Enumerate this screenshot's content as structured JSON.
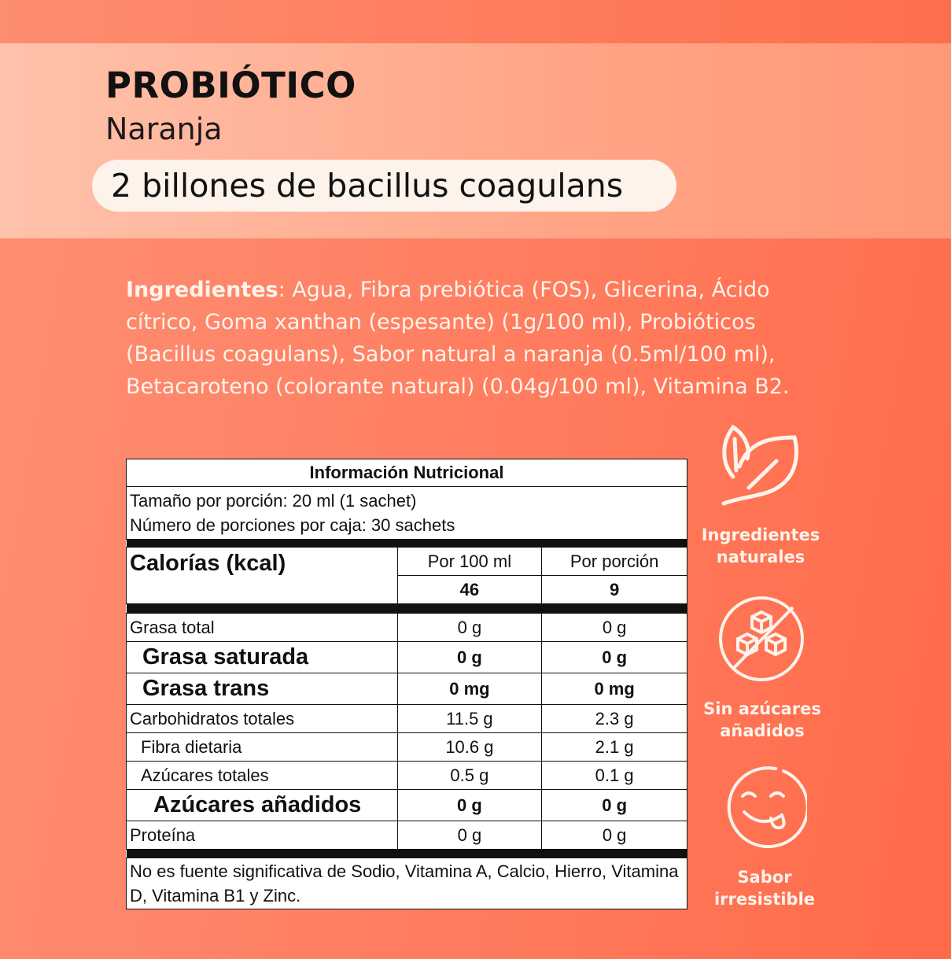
{
  "header": {
    "title": "PROBIÓTICO",
    "flavor": "Naranja",
    "highlight": "2 billones de bacillus coagulans"
  },
  "ingredients": {
    "label": "Ingredientes",
    "text": ": Agua, Fibra prebiótica (FOS), Glicerina, Ácido cítrico, Goma xanthan (espesante) (1g/100 ml), Probióticos (Bacillus coagulans), Sabor natural a naranja (0.5ml/100 ml), Betacaroteno (colorante natural) (0.04g/100 ml), Vitamina B2."
  },
  "nutrition": {
    "title": "Información Nutricional",
    "serving_size": "Tamaño por porción: 20 ml (1 sachet)",
    "servings_per_box": "Número de porciones por caja: 30 sachets",
    "calories_label": "Calorías (kcal)",
    "col_100": "Por 100 ml",
    "col_portion": "Por porción",
    "calories_100": "46",
    "calories_portion": "9",
    "rows": [
      {
        "label": "Grasa total",
        "per100": "0 g",
        "portion": "0 g"
      },
      {
        "label": "Grasa saturada",
        "per100": "0 g",
        "portion": "0 g"
      },
      {
        "label": "Grasa trans",
        "per100": "0 mg",
        "portion": "0 mg"
      },
      {
        "label": "Carbohidratos totales",
        "per100": "11.5 g",
        "portion": "2.3 g"
      },
      {
        "label": "Fibra dietaria",
        "per100": "10.6 g",
        "portion": "2.1 g"
      },
      {
        "label": "Azúcares totales",
        "per100": "0.5 g",
        "portion": "0.1 g"
      },
      {
        "label": "Azúcares añadidos",
        "per100": "0 g",
        "portion": "0 g"
      },
      {
        "label": "Proteína",
        "per100": "0 g",
        "portion": "0 g"
      }
    ],
    "footnote": "No es fuente significativa de Sodio, Vitamina A, Calcio, Hierro, Vitamina D, Vitamina B1 y Zinc."
  },
  "features": [
    {
      "icon": "leaf-icon",
      "label": "Ingredientes naturales"
    },
    {
      "icon": "no-sugar-cubes-icon",
      "label": "Sin azúcares añadidos"
    },
    {
      "icon": "smiley-tongue-icon",
      "label": "Sabor irresistible"
    }
  ],
  "colors": {
    "accent": "#ff7a5c",
    "band": "#ffb49a",
    "text_light": "#fdf3ea"
  }
}
